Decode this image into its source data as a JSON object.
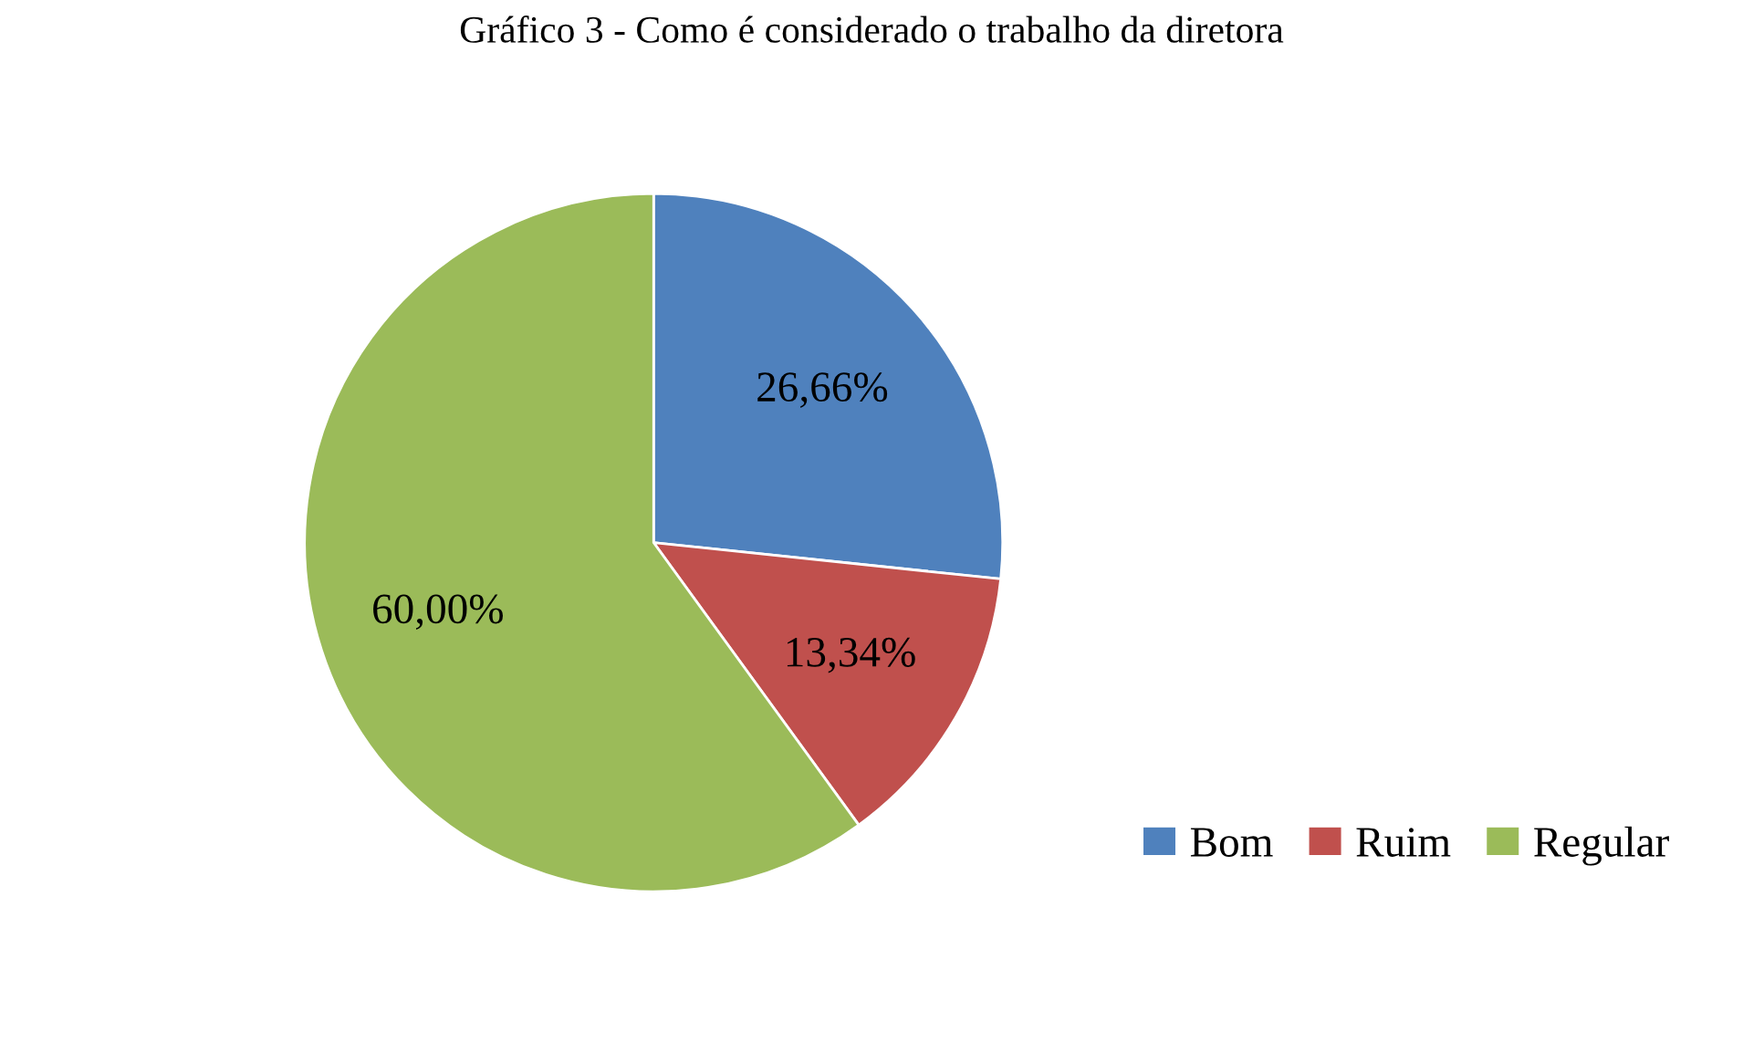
{
  "chart_data": {
    "type": "pie",
    "title": "Gráfico 3 - Como é considerado o trabalho da diretora",
    "categories": [
      "Bom",
      "Ruim",
      "Regular"
    ],
    "values": [
      26.66,
      13.34,
      60.0
    ],
    "colors": [
      "#4f81bd",
      "#c0504d",
      "#9bbb59"
    ],
    "value_labels": [
      "26,66%",
      "13,34%",
      "60,00%"
    ],
    "legend": "bottom right"
  }
}
